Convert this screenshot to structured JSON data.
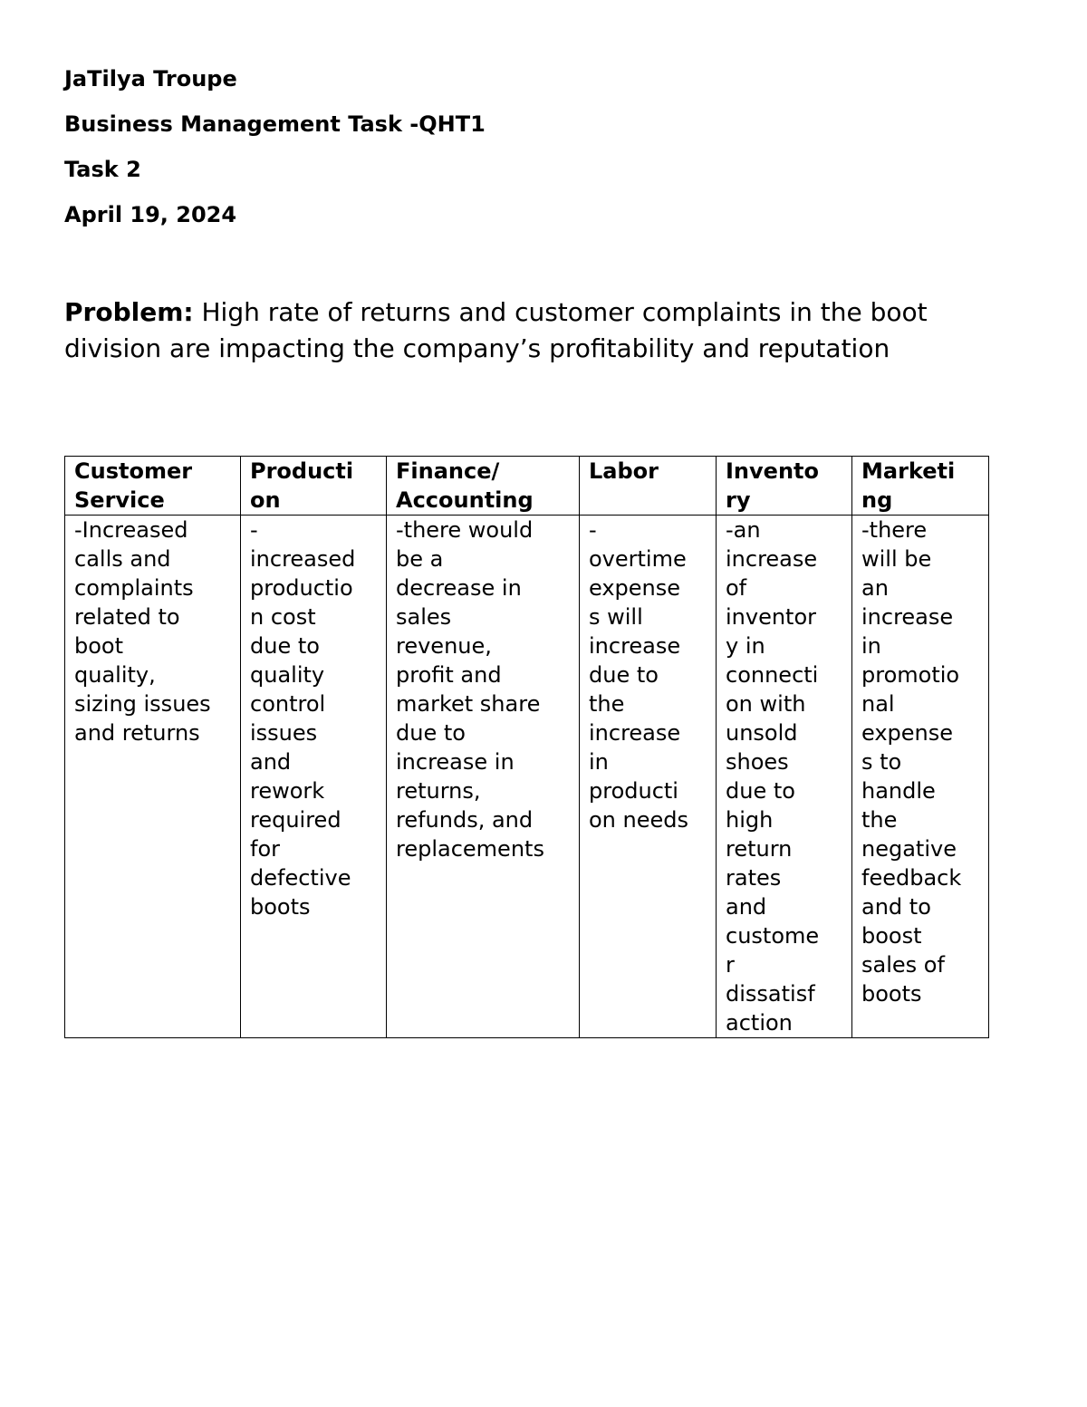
{
  "header": {
    "name": "JaTilya Troupe",
    "course": "Business Management Task -QHT1",
    "task": "Task 2",
    "date": "April 19, 2024"
  },
  "problem": {
    "label": "Problem:",
    "text": " High rate of returns and customer complaints in the boot division are impacting the company’s profitability and reputation"
  },
  "table": {
    "columns": [
      {
        "header": [
          "Customer",
          "Service"
        ],
        "lines": [
          "-Increased",
          "calls and",
          "complaints",
          "related to",
          "boot",
          "quality,",
          "sizing issues",
          "and returns"
        ]
      },
      {
        "header": [
          "Producti",
          "on"
        ],
        "lines": [
          "-",
          "increased",
          "productio",
          "n cost",
          "due to",
          "quality",
          "control",
          "issues",
          "and",
          "rework",
          "required",
          "for",
          "defective",
          "boots"
        ]
      },
      {
        "header": [
          "Finance/",
          "Accounting"
        ],
        "lines": [
          "-there would",
          "be a",
          "decrease in",
          "sales",
          "revenue,",
          "profit and",
          "market share",
          "due to",
          "increase in",
          "returns,",
          "refunds, and",
          "replacements"
        ]
      },
      {
        "header": [
          "Labor"
        ],
        "lines": [
          "-",
          "overtime",
          "expense",
          "s will",
          "increase",
          "due to",
          "the",
          "increase",
          "in",
          "producti",
          "on needs"
        ]
      },
      {
        "header": [
          "Invento",
          "ry"
        ],
        "lines": [
          "-an",
          "increase",
          "of",
          "inventor",
          "y in",
          "connecti",
          "on with",
          "unsold",
          "shoes",
          "due to",
          "high",
          "return",
          "rates",
          "and",
          "custome",
          "r",
          "dissatisf",
          "action"
        ]
      },
      {
        "header": [
          "Marketi",
          "ng"
        ],
        "lines": [
          "-there",
          "will be",
          "an",
          "increase",
          "in",
          "promotio",
          "nal",
          "expense",
          "s to",
          "handle",
          "the",
          "negative",
          "feedback",
          "and to",
          "boost",
          "sales of",
          "boots"
        ]
      }
    ]
  }
}
